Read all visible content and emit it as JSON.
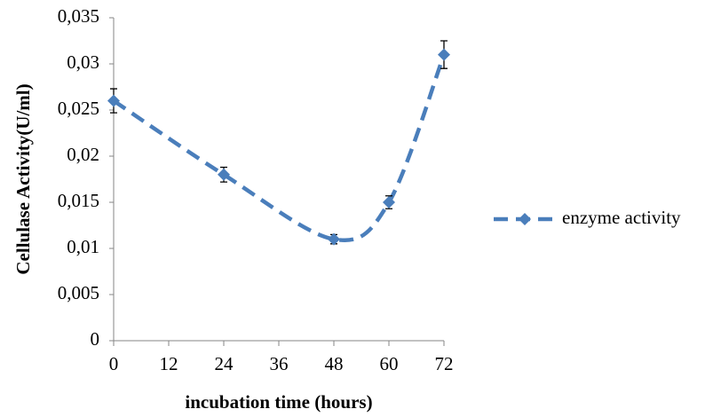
{
  "chart_data": {
    "type": "line",
    "x_label": "incubation time (hours)",
    "y_label": "Cellulase Activity(U/ml)",
    "x": [
      0,
      24,
      48,
      60,
      72
    ],
    "series": [
      {
        "name": "enzyme activity",
        "color": "#4a7ebb",
        "values": [
          0.026,
          0.018,
          0.011,
          0.015,
          0.031
        ],
        "errors": [
          0.0013,
          0.0008,
          0.0005,
          0.0007,
          0.0015
        ]
      }
    ],
    "xlim": [
      0,
      72
    ],
    "xticks": [
      0,
      12,
      24,
      36,
      48,
      60,
      72
    ],
    "ylim": [
      0,
      0.035
    ],
    "yticks": [
      0,
      {
        "value": 0.005,
        "label": "0,005"
      },
      {
        "value": 0.01,
        "label": "0,01"
      },
      {
        "value": 0.015,
        "label": "0,015"
      },
      {
        "value": 0.02,
        "label": "0,02"
      },
      {
        "value": 0.025,
        "label": "0,025"
      },
      {
        "value": 0.03,
        "label": "0,03"
      },
      {
        "value": 0.035,
        "label": "0,035"
      }
    ],
    "legend": "right",
    "grid": false
  }
}
